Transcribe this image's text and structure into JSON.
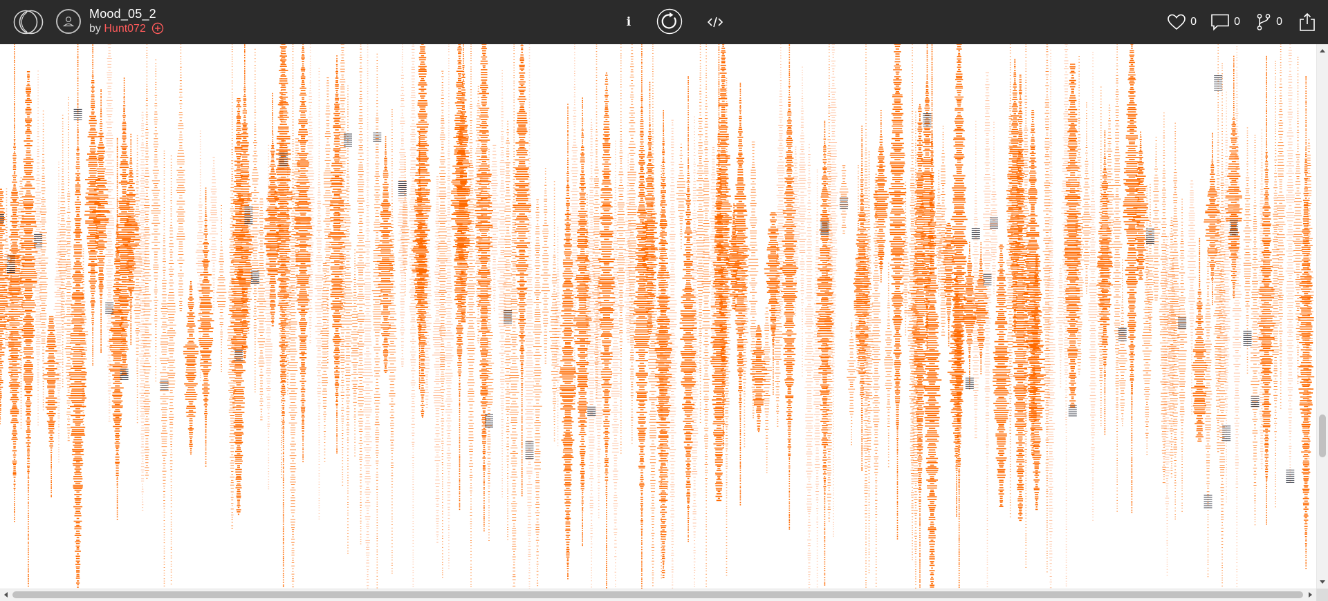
{
  "header": {
    "sketch_title": "Mood_05_2",
    "by_label": "by",
    "author": "Hunt072"
  },
  "toolbar": {
    "info_label": "i"
  },
  "stats": {
    "likes": "0",
    "comments": "0",
    "forks": "0"
  },
  "icons": {
    "logo": "openprocessing-logo-icon",
    "avatar": "user-avatar-icon",
    "follow": "plus-circle-icon",
    "info": "info-icon",
    "restart": "restart-icon",
    "code": "code-icon",
    "likes": "heart-icon",
    "comments": "comment-icon",
    "forks": "fork-icon",
    "share": "share-icon"
  },
  "colors": {
    "topbar_bg": "#2b2b2b",
    "author_link": "#ff5b5b",
    "stroke_primary": "#ff6a00",
    "stroke_light": "#ffb38a",
    "stroke_dark": "#1e2433",
    "canvas_bg": "#ffffff"
  },
  "canvas": {
    "description_tag": "generative-art-canvas"
  }
}
